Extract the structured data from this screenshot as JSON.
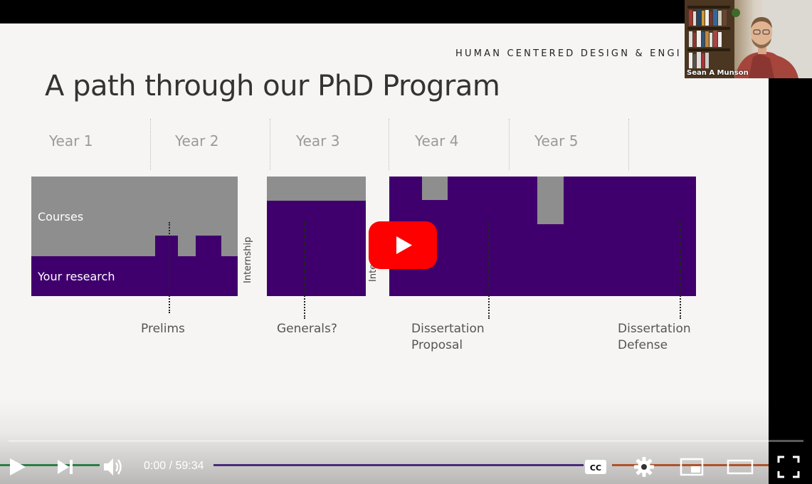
{
  "slide": {
    "header": "HUMAN CENTERED DESIGN & ENGI",
    "title": "A path through our PhD Program",
    "years": [
      "Year 1",
      "Year 2",
      "Year 3",
      "Year 4",
      "Year 5"
    ],
    "courses_label": "Courses",
    "research_label": "Your research",
    "internship_label": "Internship",
    "internship_label_partial": "Inte",
    "milestones": [
      "Prelims",
      "Generals?",
      "Dissertation\nProposal",
      "Dissertation\nDefense"
    ],
    "colors": {
      "courses": "#8e8e8e",
      "research": "#3f006d"
    }
  },
  "webcam": {
    "name": "Sean A Munson"
  },
  "player": {
    "time_current": "0:00",
    "time_separator": " / ",
    "time_total": "59:34",
    "icons": [
      "play-icon",
      "next-icon",
      "volume-icon",
      "captions-icon",
      "settings-icon",
      "miniplayer-icon",
      "theater-icon",
      "fullscreen-icon"
    ],
    "big_play_color": "#ff0000",
    "progress": 0.0
  }
}
